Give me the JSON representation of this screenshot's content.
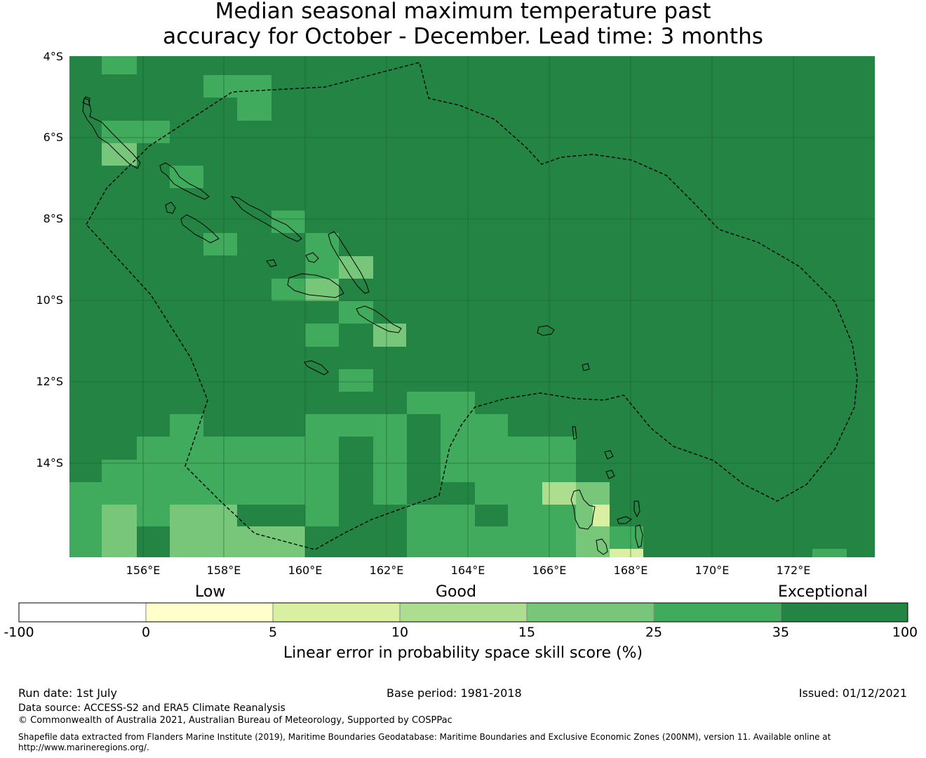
{
  "title": {
    "line1": "Median seasonal maximum temperature past",
    "line2": "accuracy for October - December. Lead time: 3 months"
  },
  "map": {
    "lat_labels": [
      "4°S",
      "6°S",
      "8°S",
      "10°S",
      "12°S",
      "14°S"
    ],
    "lon_labels": [
      "156°E",
      "158°E",
      "160°E",
      "162°E",
      "164°E",
      "166°E",
      "168°E",
      "170°E",
      "172°E"
    ],
    "background_color": "#238443"
  },
  "colorbar": {
    "categories": [
      "Low",
      "Good",
      "Exceptional"
    ],
    "ticks": [
      "-100",
      "0",
      "5",
      "10",
      "15",
      "25",
      "35",
      "100"
    ],
    "colors": [
      "#ffffff",
      "#ffffcc",
      "#d9f0a3",
      "#addd8e",
      "#78c679",
      "#41ab5d",
      "#238443"
    ],
    "title": "Linear error in probability space skill score (%)"
  },
  "footer": {
    "run_date": "Run date: 1st July",
    "base_period": "Base period: 1981-2018",
    "issued": "Issued: 01/12/2021",
    "data_source": "Data source: ACCESS-S2 and ERA5 Climate Reanalysis",
    "copyright": "© Commonwealth of Australia 2021, Australian Bureau of Meteorology, Supported by COSPPac",
    "shapefile": "Shapefile data extracted from Flanders Marine Institute (2019), Maritime Boundaries Geodatabase: Maritime Boundaries and Exclusive Economic Zones (200NM), version 11. Available online at http://www.marineregions.org/."
  }
}
